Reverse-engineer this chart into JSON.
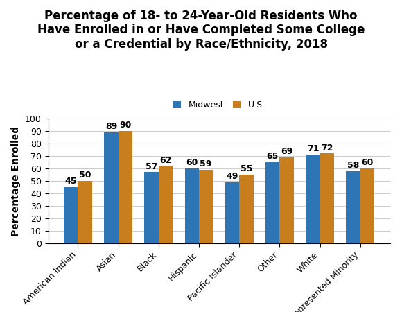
{
  "title": "Percentage of 18- to 24-Year-Old Residents Who\nHave Enrolled in or Have Completed Some College\nor a Credential by Race/Ethnicity, 2018",
  "ylabel": "Percentage Enrolled",
  "categories": [
    "American Indian",
    "Asian",
    "Black",
    "Hispanic",
    "Pacific Islander",
    "Other",
    "White",
    "Underrepresented Minority"
  ],
  "midwest": [
    45,
    89,
    57,
    60,
    49,
    65,
    71,
    58
  ],
  "us": [
    50,
    90,
    62,
    59,
    55,
    69,
    72,
    60
  ],
  "bar_color_midwest": "#2e75b6",
  "bar_color_us": "#c97e1e",
  "ylim": [
    0,
    100
  ],
  "yticks": [
    0,
    10,
    20,
    30,
    40,
    50,
    60,
    70,
    80,
    90,
    100
  ],
  "legend_labels": [
    "Midwest",
    "U.S."
  ],
  "bar_width": 0.35,
  "label_fontsize": 9,
  "title_fontsize": 12,
  "axis_label_fontsize": 10,
  "tick_fontsize": 9,
  "background_color": "#ffffff"
}
